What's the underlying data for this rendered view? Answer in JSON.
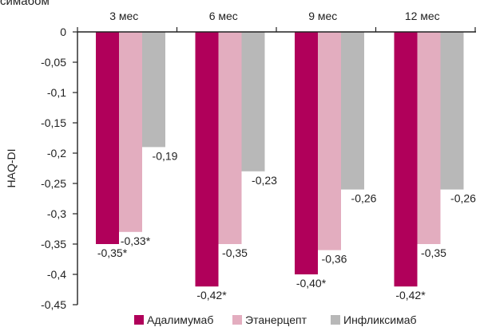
{
  "header_fragment": "симабом",
  "colors": {
    "adalimumab": "#b0005a",
    "etanercept": "#e3adbf",
    "infliximab": "#b8b8b8",
    "axis": "#222222",
    "text": "#222222"
  },
  "chart_data": {
    "type": "bar",
    "ylabel": "HAQ-DI",
    "ylim": [
      -0.45,
      0
    ],
    "yticks": [
      0,
      -0.05,
      -0.1,
      -0.15,
      -0.2,
      -0.25,
      -0.3,
      -0.35,
      -0.4,
      -0.45
    ],
    "ytick_labels": [
      "0",
      "-0,05",
      "-0,1",
      "-0,15",
      "-0,2",
      "-0,25",
      "-0,3",
      "-0,35",
      "-0,4",
      "-0,45"
    ],
    "categories": [
      "3 мес",
      "6 мес",
      "9 мес",
      "12 мес"
    ],
    "x_axis_position": "top",
    "legend_position": "bottom",
    "grid": false,
    "series": [
      {
        "name": "Адалимумаб",
        "color_key": "adalimumab",
        "values": [
          -0.35,
          -0.42,
          -0.4,
          -0.42
        ],
        "labels": [
          "-0,35*",
          "-0,42*",
          "-0,40*",
          "-0,42*"
        ]
      },
      {
        "name": "Этанерцепт",
        "color_key": "etanercept",
        "values": [
          -0.33,
          -0.35,
          -0.36,
          -0.35
        ],
        "labels": [
          "-0,33*",
          "-0,35",
          "-0,36",
          "-0,35"
        ]
      },
      {
        "name": "Инфликсимаб",
        "color_key": "infliximab",
        "values": [
          -0.19,
          -0.23,
          -0.26,
          -0.26
        ],
        "labels": [
          "-0,19",
          "-0,23",
          "-0,26",
          "-0,26"
        ]
      }
    ]
  }
}
